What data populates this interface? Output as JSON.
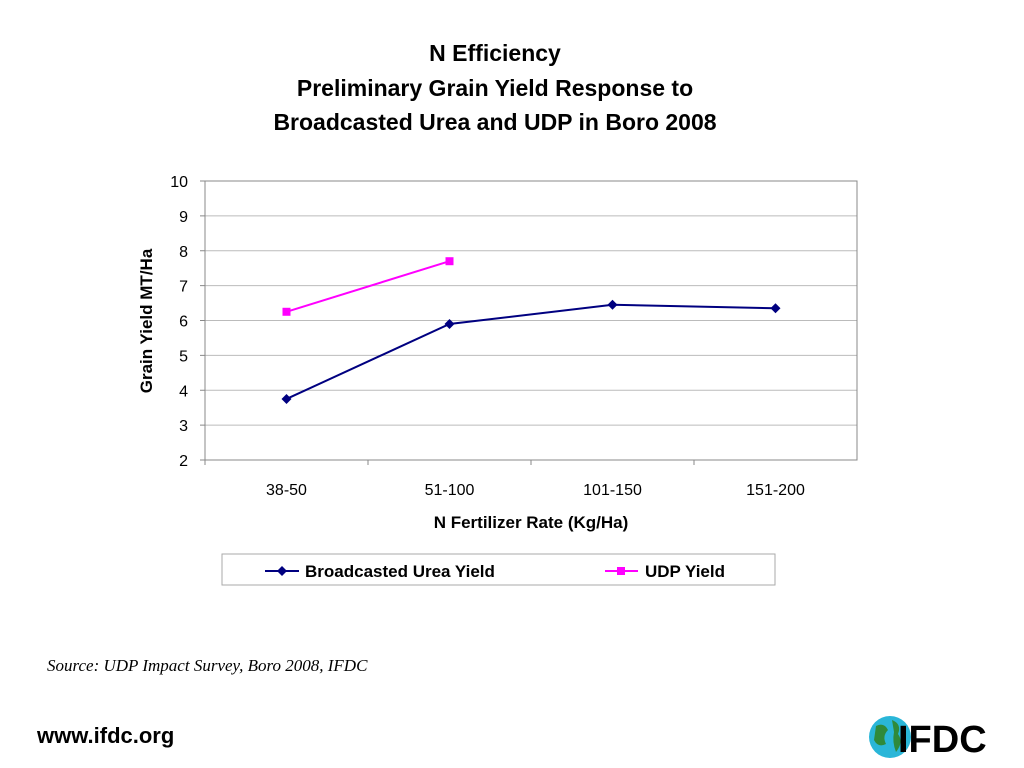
{
  "chart_data": {
    "type": "line",
    "title": [
      "N Efficiency",
      "Preliminary Grain Yield Response to",
      "Broadcasted Urea and UDP in Boro 2008"
    ],
    "xlabel": "N Fertilizer Rate (Kg/Ha)",
    "ylabel": "Grain Yield MT/Ha",
    "categories": [
      "38-50",
      "51-100",
      "101-150",
      "151-200"
    ],
    "ylim": [
      2,
      10
    ],
    "yticks": [
      2,
      3,
      4,
      5,
      6,
      7,
      8,
      9,
      10
    ],
    "grid": true,
    "legend_position": "bottom",
    "series": [
      {
        "name": "Broadcasted Urea Yield",
        "color": "#000080",
        "marker": "diamond",
        "values": [
          3.75,
          5.9,
          6.45,
          6.35
        ]
      },
      {
        "name": "UDP Yield",
        "color": "#FF00FF",
        "marker": "square",
        "values": [
          6.25,
          7.7,
          null,
          null
        ]
      }
    ]
  },
  "footer": {
    "source": "Source:  UDP Impact Survey, Boro 2008, IFDC",
    "url": "www.ifdc.org",
    "logo_text": "IFDC"
  }
}
